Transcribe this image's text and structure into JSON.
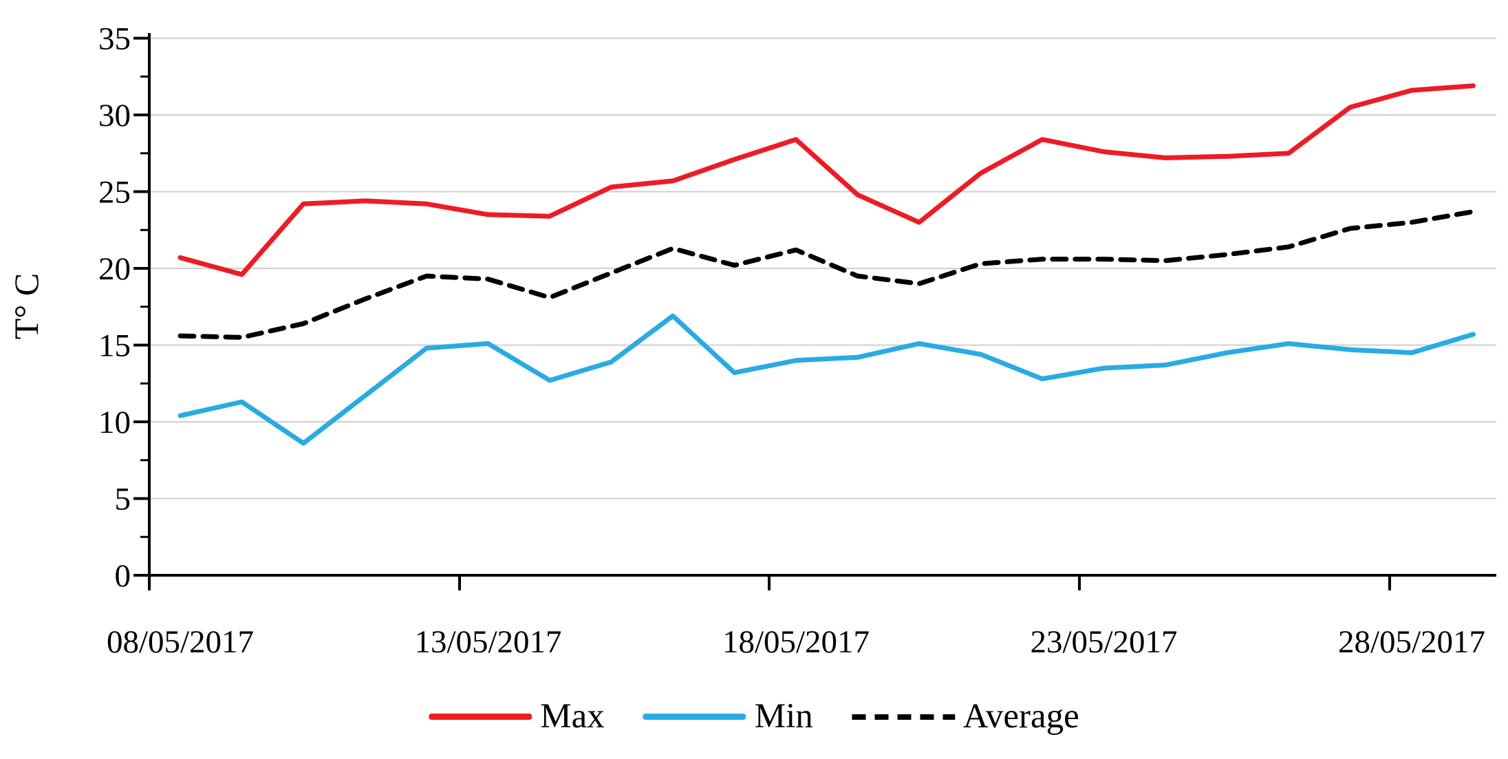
{
  "chart_data": {
    "type": "line",
    "title": "",
    "ylabel": "T° C",
    "xlabel": "",
    "grid": "horizontal",
    "legend_position": "bottom-center",
    "ylim": [
      0,
      35
    ],
    "y_ticks": [
      0,
      5,
      10,
      15,
      20,
      25,
      30,
      35
    ],
    "y_minor_tick_step": 2.5,
    "x_tick_labels": [
      "08/05/2017",
      "13/05/2017",
      "18/05/2017",
      "23/05/2017",
      "28/05/2017"
    ],
    "x_tick_day_indices": [
      0,
      5,
      10,
      15,
      20
    ],
    "x_dates": [
      "08/05/2017",
      "09/05/2017",
      "10/05/2017",
      "11/05/2017",
      "12/05/2017",
      "13/05/2017",
      "14/05/2017",
      "15/05/2017",
      "16/05/2017",
      "17/05/2017",
      "18/05/2017",
      "19/05/2017",
      "20/05/2017",
      "21/05/2017",
      "22/05/2017",
      "23/05/2017",
      "24/05/2017",
      "25/05/2017",
      "26/05/2017",
      "27/05/2017",
      "28/05/2017",
      "29/05/2017"
    ],
    "series": [
      {
        "name": "Max",
        "color": "#ED1C24",
        "style": "solid",
        "values": [
          20.7,
          19.6,
          24.2,
          24.4,
          24.2,
          23.5,
          23.4,
          25.3,
          25.7,
          27.1,
          28.4,
          24.8,
          23.0,
          26.2,
          28.4,
          27.6,
          27.2,
          27.3,
          27.5,
          30.5,
          31.6,
          31.9
        ]
      },
      {
        "name": "Min",
        "color": "#29ABE2",
        "style": "solid",
        "values": [
          10.4,
          11.3,
          8.6,
          11.7,
          14.8,
          15.1,
          12.7,
          13.9,
          16.9,
          13.2,
          14.0,
          14.2,
          15.1,
          14.4,
          12.8,
          13.5,
          13.7,
          14.5,
          15.1,
          14.7,
          14.5,
          15.7
        ]
      },
      {
        "name": "Average",
        "color": "#000000",
        "style": "dashed",
        "values": [
          15.6,
          15.5,
          16.4,
          18.0,
          19.5,
          19.3,
          18.1,
          19.7,
          21.3,
          20.2,
          21.2,
          19.5,
          19.0,
          20.3,
          20.6,
          20.6,
          20.5,
          20.9,
          21.4,
          22.6,
          23.0,
          23.7
        ]
      }
    ],
    "axis_color": "#000000",
    "gridline_color": "#CFCFCF"
  }
}
